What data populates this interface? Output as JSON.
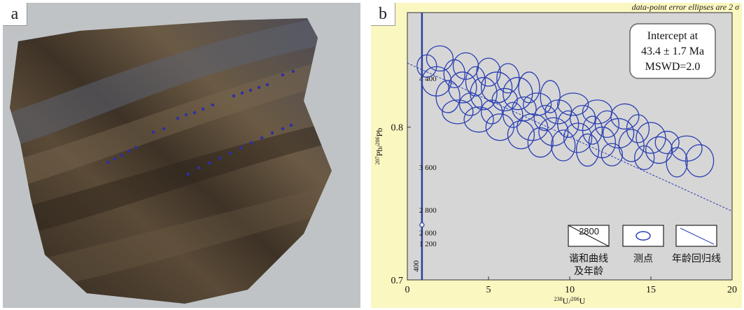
{
  "panel_a": {
    "letter": "a",
    "image": "photograph of a polished rock slab with blue laser ablation spots",
    "colors": {
      "background": "#bfc3c6",
      "rock_dark": "#3f3428",
      "rock_mid": "#6b5a44",
      "rock_band": "#5d6271",
      "spot": "#2c2fa6"
    }
  },
  "panel_b": {
    "letter": "b",
    "note": "data-point error ellipses are 2 σ",
    "intercept_box": {
      "line1": "Intercept at",
      "line2": "43.4 ± 1.7 Ma",
      "line3": "MSWD=2.0"
    },
    "legend": {
      "concordia": {
        "sample_age": "2800",
        "label_line1": "谐和曲线",
        "label_line2": "及年龄"
      },
      "spot": {
        "label": "测点"
      },
      "regression": {
        "label": "年龄回归线"
      }
    },
    "colors": {
      "background": "#fbf7c0",
      "plot_bg": "#d6d6d6",
      "data": "#2b3fb2",
      "concordia": "#2c3f9e"
    }
  },
  "chart_data": {
    "type": "scatter",
    "title": "",
    "xlabel": "238U/206U",
    "ylabel": "207Pb/206Pb",
    "xlim": [
      0,
      20
    ],
    "ylim": [
      0.7,
      0.875
    ],
    "x_ticks": [
      "0",
      "5",
      "10",
      "15",
      "20"
    ],
    "y_ticks": [
      "0.7",
      "0.8"
    ],
    "concordia_ages": [
      "4 400",
      "3 600",
      "2 800",
      "2 000",
      "1 200",
      "400"
    ],
    "regression": {
      "x": [
        0,
        20
      ],
      "y": [
        0.842,
        0.745
      ]
    },
    "points": [
      {
        "x": 1.2,
        "y": 0.84
      },
      {
        "x": 1.8,
        "y": 0.83
      },
      {
        "x": 2.0,
        "y": 0.845
      },
      {
        "x": 2.5,
        "y": 0.82
      },
      {
        "x": 2.9,
        "y": 0.835
      },
      {
        "x": 3.1,
        "y": 0.81
      },
      {
        "x": 3.4,
        "y": 0.826
      },
      {
        "x": 3.6,
        "y": 0.84
      },
      {
        "x": 3.9,
        "y": 0.815
      },
      {
        "x": 4.2,
        "y": 0.83
      },
      {
        "x": 4.4,
        "y": 0.805
      },
      {
        "x": 4.7,
        "y": 0.822
      },
      {
        "x": 5.0,
        "y": 0.836
      },
      {
        "x": 5.2,
        "y": 0.81
      },
      {
        "x": 5.5,
        "y": 0.826
      },
      {
        "x": 5.7,
        "y": 0.8
      },
      {
        "x": 6.0,
        "y": 0.818
      },
      {
        "x": 6.2,
        "y": 0.832
      },
      {
        "x": 6.5,
        "y": 0.808
      },
      {
        "x": 6.8,
        "y": 0.822
      },
      {
        "x": 7.0,
        "y": 0.795
      },
      {
        "x": 7.2,
        "y": 0.812
      },
      {
        "x": 7.5,
        "y": 0.826
      },
      {
        "x": 7.7,
        "y": 0.8
      },
      {
        "x": 8.0,
        "y": 0.815
      },
      {
        "x": 8.2,
        "y": 0.79
      },
      {
        "x": 8.5,
        "y": 0.806
      },
      {
        "x": 8.8,
        "y": 0.82
      },
      {
        "x": 9.0,
        "y": 0.797
      },
      {
        "x": 9.3,
        "y": 0.81
      },
      {
        "x": 9.6,
        "y": 0.788
      },
      {
        "x": 9.9,
        "y": 0.802
      },
      {
        "x": 10.2,
        "y": 0.815
      },
      {
        "x": 10.5,
        "y": 0.793
      },
      {
        "x": 10.8,
        "y": 0.806
      },
      {
        "x": 11.1,
        "y": 0.785
      },
      {
        "x": 11.4,
        "y": 0.798
      },
      {
        "x": 11.7,
        "y": 0.81
      },
      {
        "x": 12.0,
        "y": 0.79
      },
      {
        "x": 12.3,
        "y": 0.802
      },
      {
        "x": 12.6,
        "y": 0.782
      },
      {
        "x": 13.0,
        "y": 0.796
      },
      {
        "x": 13.4,
        "y": 0.807
      },
      {
        "x": 13.8,
        "y": 0.788
      },
      {
        "x": 14.2,
        "y": 0.799
      },
      {
        "x": 14.6,
        "y": 0.78
      },
      {
        "x": 15.0,
        "y": 0.793
      },
      {
        "x": 15.5,
        "y": 0.785
      },
      {
        "x": 16.0,
        "y": 0.79
      },
      {
        "x": 16.6,
        "y": 0.777
      },
      {
        "x": 17.2,
        "y": 0.786
      },
      {
        "x": 18.0,
        "y": 0.778
      }
    ]
  }
}
